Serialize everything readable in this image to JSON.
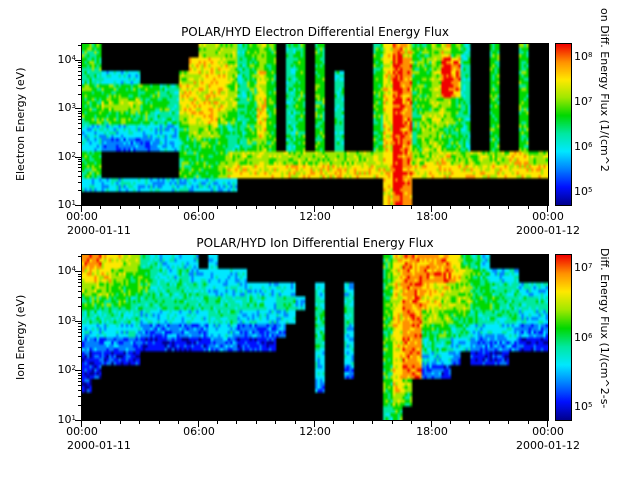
{
  "window": {
    "background": "#ffffff",
    "axis_color": "#000000",
    "no_data_color": "#000000"
  },
  "colormap": [
    "#00008c",
    "#0010ff",
    "#0080ff",
    "#00e8ff",
    "#00e8a0",
    "#00d800",
    "#a0e800",
    "#ffe800",
    "#ff9000",
    "#f00000"
  ],
  "chart_data": [
    {
      "type": "heatmap",
      "title": "POLAR/HYD  Electron Differential Energy Flux",
      "ylabel": "Electron Energy (eV)",
      "y_scale": "log",
      "y_tick_exponents": [
        4,
        3,
        2,
        1
      ],
      "y_range_exponents": [
        1,
        4.33
      ],
      "x_ticks": [
        "00:00",
        "06:00",
        "12:00",
        "18:00",
        "00:00"
      ],
      "x_date_left": "2000-01-11",
      "x_date_right": "2000-01-12",
      "x_span_hours": 24,
      "time_bin_minutes": 30,
      "colorbar_label": "on Diff. Energy Flux (1/(cm^2",
      "colorbar_tick_exponents": [
        8,
        7,
        6,
        5
      ],
      "grid_encoding": ". = no flux (black); digits 0-9 = increasing log10 differential energy flux mapped through rainbow colormap",
      "grid": [
        [
          "55........",
          "..66664565",
          ".45.5.....",
          "5787556754",
          "..5..5.."
        ],
        [
          "55........",
          ".777764565",
          ".45.5.....",
          "5798556984",
          "..5..5.."
        ],
        [
          "443333....",
          "6777764575",
          ".45.5.4...",
          "5798556984",
          "..5..5.."
        ],
        [
          "5555555544",
          "7777764575",
          ".45.5.4...",
          "5798556984",
          "..5..5.."
        ],
        [
          "5566665554",
          "7777764575",
          ".45.5.4...",
          "5798556654",
          "..5..5.."
        ],
        [
          "5555555444",
          "6777654575",
          ".45.5.4...",
          "5798566654",
          "..5..5.."
        ],
        [
          "3333333333",
          "5666544575",
          ".45.5.4...",
          "5798566554",
          "..5..5.."
        ],
        [
          "3322222233",
          "4555544565",
          ".45.5.4...",
          "5798566554",
          "..5..5.."
        ],
        [
          "55........",
          "5555566666",
          "6666666666",
          "6798667766",
          "66667766"
        ],
        [
          "55........",
          "5555677777",
          "7777777777",
          "7798777777",
          "77777777"
        ],
        [
          "3333333333",
          "333333....",
          "..........",
          ".798......",
          "........"
        ],
        [
          "..........",
          "..........",
          "..........",
          ".798......",
          "........"
        ]
      ]
    },
    {
      "type": "heatmap",
      "title": "POLAR/HYD  Ion Differential Energy Flux",
      "ylabel": "Ion Energy (eV)",
      "y_scale": "log",
      "y_tick_exponents": [
        4,
        3,
        2,
        1
      ],
      "y_range_exponents": [
        1,
        4.33
      ],
      "x_ticks": [
        "00:00",
        "06:00",
        "12:00",
        "18:00",
        "00:00"
      ],
      "x_date_left": "2000-01-11",
      "x_date_right": "2000-01-12",
      "x_span_hours": 24,
      "time_bin_minutes": 30,
      "colorbar_label": "Diff. Energy Flux (1/(cm^2-s-",
      "colorbar_tick_exponents": [
        7,
        6,
        5
      ],
      "grid_encoding": ". = no flux (black); digits 0-9 = increasing log10 differential energy flux mapped through rainbow colormap",
      "grid": [
        [
          "8877664433",
          "33.3......",
          "..........",
          ".578888875",
          "43......"
        ],
        [
          "7776655443",
          "4333333...",
          "..........",
          ".578888876",
          "54333..."
        ],
        [
          "6665555444",
          "4443333333",
          "33..3..3..",
          ".578887766",
          "55444333"
        ],
        [
          "5555544444",
          "4444444443",
          "443.4..4..",
          ".578877666",
          "55544444"
        ],
        [
          "4444443333",
          "3334443333",
          "33..4..4..",
          ".578866655",
          "44444333"
        ],
        [
          "3333332222",
          "2223332222",
          "2...4..3..",
          ".578855544",
          "33333222"
        ],
        [
          "2222221111",
          "1112221111",
          "....4..3..",
          ".578844433",
          "22222111"
        ],
        [
          "111111....",
          "..........",
          "....3..3..",
          ".57883332.",
          "1111...."
        ],
        [
          "11........",
          "..........",
          "....3..2..",
          ".5788221..",
          "........"
        ],
        [
          "1.........",
          "..........",
          "....2.....",
          ".576......",
          "........"
        ],
        [
          "..........",
          "..........",
          "..........",
          ".565......",
          "........"
        ],
        [
          "..........",
          "..........",
          "..........",
          ".45.......",
          "........"
        ]
      ]
    }
  ]
}
